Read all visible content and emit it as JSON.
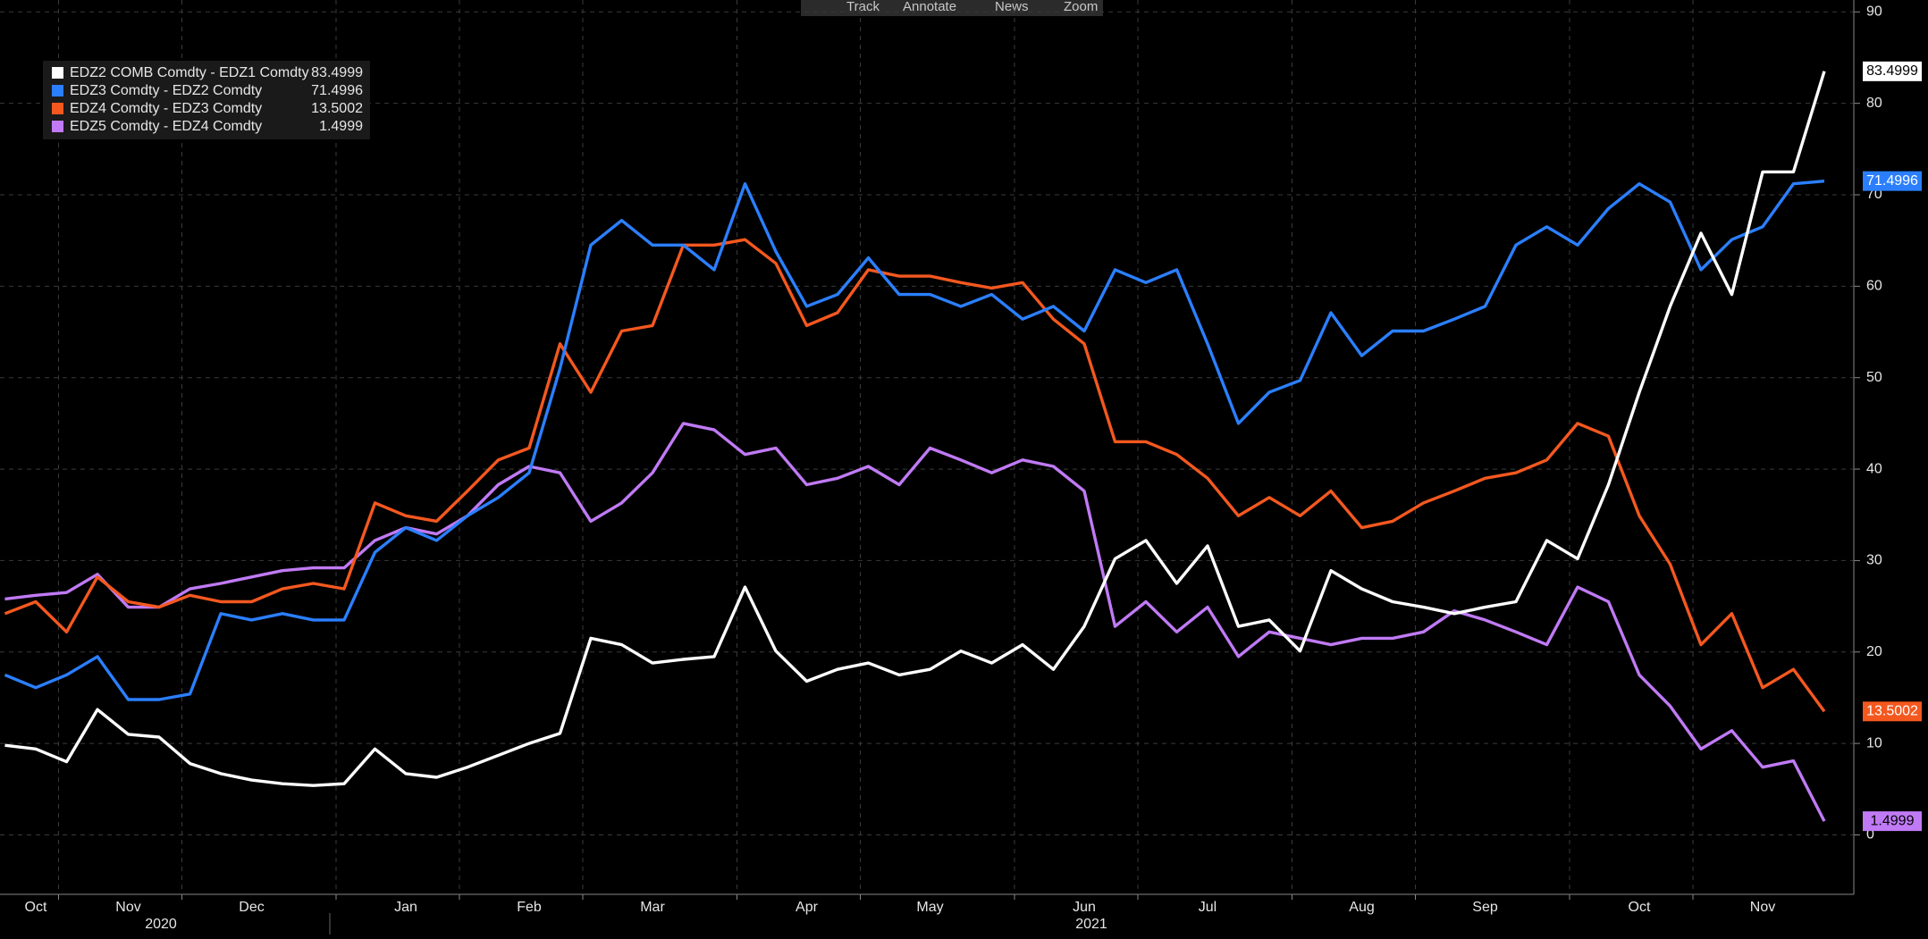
{
  "chart_data": {
    "type": "line",
    "toolbar": [
      "Track",
      "Annotate",
      "News",
      "Zoom"
    ],
    "x_group_labels": [
      "2020",
      "2021"
    ],
    "categories": [
      null,
      "Oct",
      null,
      null,
      "Nov",
      null,
      null,
      null,
      "Dec",
      null,
      null,
      null,
      null,
      "Jan",
      null,
      null,
      null,
      "Feb",
      null,
      null,
      null,
      "Mar",
      null,
      null,
      null,
      null,
      "Apr",
      null,
      null,
      null,
      "May",
      null,
      null,
      null,
      null,
      "Jun",
      null,
      null,
      null,
      "Jul",
      null,
      null,
      null,
      null,
      "Aug",
      null,
      null,
      null,
      "Sep",
      null,
      null,
      null,
      null,
      "Oct",
      null,
      null,
      null,
      "Nov",
      null,
      null
    ],
    "series": [
      {
        "name": "EDZ2 COMB Comdty - EDZ1 Comdty",
        "color": "#ffffff",
        "values": [
          9.8,
          9.4,
          8,
          13.7,
          11,
          10.7,
          7.8,
          6.7,
          6,
          5.6,
          5.4,
          5.6,
          9.4,
          6.7,
          6.3,
          7.4,
          8.7,
          10,
          11.1,
          21.5,
          20.8,
          18.8,
          19.2,
          19.5,
          27.1,
          20.1,
          16.8,
          18.1,
          18.8,
          17.5,
          18.1,
          20.1,
          18.8,
          20.8,
          18.1,
          22.8,
          30.2,
          32.2,
          27.5,
          31.6,
          22.8,
          23.5,
          20.1,
          28.9,
          26.9,
          25.5,
          24.9,
          24.2,
          24.9,
          25.5,
          32.2,
          30.2,
          38.3,
          48.4,
          57.8,
          65.8,
          59.1,
          72.5,
          72.5,
          83.4999
        ]
      },
      {
        "name": "EDZ3 Comdty - EDZ2 Comdty",
        "color": "#2b7fff",
        "values": [
          17.5,
          16.1,
          17.5,
          19.5,
          14.8,
          14.8,
          15.4,
          24.2,
          23.5,
          24.2,
          23.5,
          23.5,
          30.9,
          33.6,
          32.2,
          34.9,
          36.9,
          39.6,
          51,
          64.5,
          67.2,
          64.5,
          64.5,
          61.8,
          71.2,
          63.8,
          57.8,
          59.1,
          63.1,
          59.1,
          59.1,
          57.8,
          59.1,
          56.4,
          57.8,
          55.1,
          61.8,
          60.4,
          61.8,
          53.7,
          45,
          48.4,
          49.7,
          57.1,
          52.4,
          55.1,
          55.1,
          56.4,
          57.8,
          64.5,
          66.5,
          64.5,
          68.5,
          71.2,
          69.2,
          61.8,
          65.1,
          66.5,
          71.2,
          71.4996
        ]
      },
      {
        "name": "EDZ4 Comdty - EDZ3 Comdty",
        "color": "#f4581f",
        "values": [
          24.2,
          25.5,
          22.2,
          28.2,
          25.5,
          24.9,
          26.2,
          25.5,
          25.5,
          26.9,
          27.5,
          26.9,
          36.3,
          34.9,
          34.3,
          37.6,
          41,
          42.3,
          53.7,
          48.4,
          55.1,
          55.7,
          64.5,
          64.5,
          65.1,
          62.5,
          55.7,
          57.1,
          61.8,
          61.1,
          61.1,
          60.4,
          59.8,
          60.4,
          56.4,
          53.7,
          43,
          43,
          41.6,
          39,
          34.9,
          36.9,
          34.9,
          37.6,
          33.6,
          34.3,
          36.3,
          37.6,
          39,
          39.6,
          41,
          45,
          43.6,
          34.9,
          29.6,
          20.8,
          24.2,
          16.1,
          18.1,
          13.5002
        ]
      },
      {
        "name": "EDZ5 Comdty - EDZ4 Comdty",
        "color": "#c07af5",
        "values": [
          25.8,
          26.2,
          26.5,
          28.5,
          24.9,
          24.9,
          26.9,
          27.5,
          28.2,
          28.9,
          29.2,
          29.2,
          32.2,
          33.6,
          32.9,
          34.9,
          38.3,
          40.3,
          39.6,
          34.3,
          36.3,
          39.6,
          45,
          44.3,
          41.6,
          42.3,
          38.3,
          39,
          40.3,
          38.3,
          42.3,
          41,
          39.6,
          41,
          40.3,
          37.6,
          22.8,
          25.5,
          22.2,
          24.9,
          19.5,
          22.2,
          21.5,
          20.8,
          21.5,
          21.5,
          22.2,
          24.5,
          23.5,
          22.2,
          20.8,
          27.1,
          25.5,
          17.5,
          14.1,
          9.4,
          11.4,
          7.4,
          8.1,
          1.4999
        ]
      }
    ],
    "ylim": [
      -6.5,
      91.3
    ],
    "yticks": [
      0,
      10,
      20,
      30,
      40,
      50,
      60,
      70,
      80,
      90
    ],
    "grid": true,
    "legend": "upper-left"
  }
}
